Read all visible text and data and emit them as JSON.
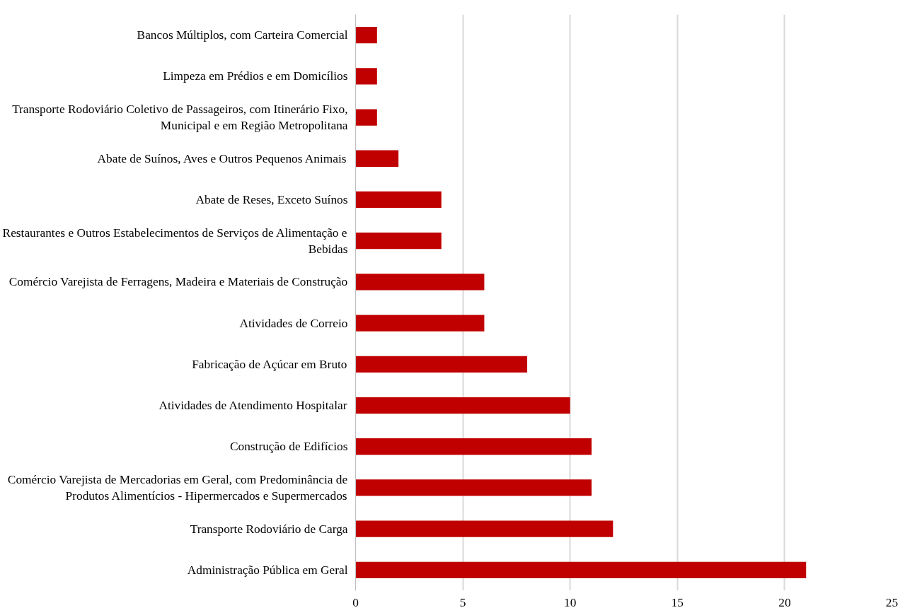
{
  "chart_data": {
    "type": "bar",
    "orientation": "horizontal",
    "categories": [
      "Bancos Múltiplos, com Carteira Comercial",
      "Limpeza em Prédios e em Domicílios",
      "Transporte Rodoviário Coletivo de Passageiros, com Itinerário Fixo, Municipal e em Região Metropolitana",
      "Abate de Suínos, Aves e Outros Pequenos Animais",
      "Abate de Reses, Exceto Suínos",
      "Restaurantes e Outros Estabelecimentos de Serviços de Alimentação e Bebidas",
      "Comércio Varejista de Ferragens, Madeira e Materiais de Construção",
      "Atividades de Correio",
      "Fabricação de Açúcar em Bruto",
      "Atividades de Atendimento Hospitalar",
      "Construção de Edifícios",
      "Comércio Varejista de Mercadorias em Geral, com Predominância de Produtos Alimentícios - Hipermercados e Supermercados",
      "Transporte Rodoviário de Carga",
      "Administração Pública em Geral"
    ],
    "values": [
      1,
      1,
      1,
      2,
      4,
      4,
      6,
      6,
      8,
      10,
      11,
      11,
      12,
      21
    ],
    "color": "#c00000",
    "xlim": [
      0,
      25
    ],
    "xticks": [
      0,
      5,
      10,
      15,
      20,
      25
    ],
    "grid": "x"
  }
}
